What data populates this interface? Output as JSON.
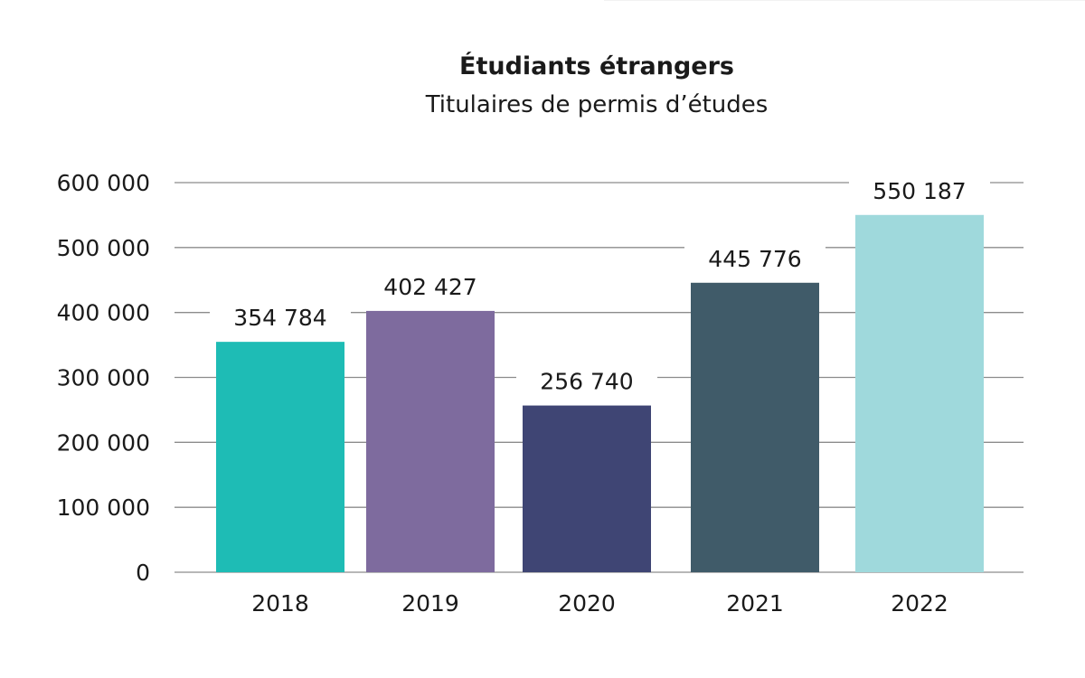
{
  "chart_data": {
    "type": "bar",
    "title": "Étudiants étrangers",
    "subtitle": "Titulaires de permis d’études",
    "categories": [
      "2018",
      "2019",
      "2020",
      "2021",
      "2022"
    ],
    "values": [
      354784,
      402427,
      256740,
      445776,
      550187
    ],
    "value_labels": [
      "354 784",
      "402 427",
      "256 740",
      "445 776",
      "550 187"
    ],
    "colors": [
      "#1ebcb5",
      "#7e6b9e",
      "#3f4574",
      "#405b69",
      "#9fd9dc"
    ],
    "xlabel": "",
    "ylabel": "",
    "ylim": [
      0,
      600000
    ],
    "yticks": [
      0,
      100000,
      200000,
      300000,
      400000,
      500000,
      600000
    ],
    "ytick_labels": [
      "0",
      "100 000",
      "200 000",
      "300 000",
      "400 000",
      "500 000",
      "600 000"
    ],
    "grid": true,
    "legend": "none"
  }
}
